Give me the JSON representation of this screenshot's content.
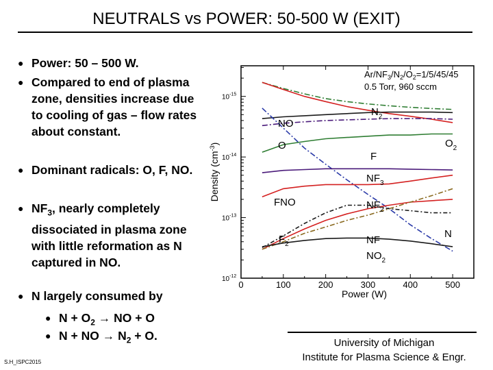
{
  "slide": {
    "title": "NEUTRALS vs POWER: 50-500 W (EXIT)",
    "credit": "S.H_ISPC2015",
    "footer_line1": "University of Michigan",
    "footer_line2": "Institute for Plasma Science & Engr."
  },
  "bullets": {
    "b1": "Power: 50 – 500 W.",
    "b2": "Compared  to end of plasma zone, densities increase due to cooling of gas – flow rates about constant.",
    "b3": "Dominant radicals: O, F, NO.",
    "b4_pre": "NF",
    "b4_sub": "3",
    "b4_post": ", nearly completely dissociated in plasma zone with little reformation as N captured in NO.",
    "b5": "N largely consumed by",
    "r1_pre": "N + O",
    "r1_sub": "2",
    "r1_arrow": "→",
    "r1_post": " NO + O",
    "r2_pre": "N + NO ",
    "r2_arrow": "→",
    "r2_mid": " N",
    "r2_sub": "2",
    "r2_post": " + O."
  },
  "chart_data": {
    "type": "line",
    "title": "Ar/NF3/N2/O2=1/5/45/45",
    "subtitle": "0.5 Torr, 960 sccm",
    "xlabel": "Power (W)",
    "ylabel": "Density (cm-3)",
    "xlim": [
      0,
      550
    ],
    "x_ticks": [
      "0",
      "100",
      "200",
      "300",
      "400",
      "500"
    ],
    "y_scale": "log",
    "y_ticks": [
      "10-12",
      "10-13",
      "10-14",
      "10-15"
    ],
    "x": [
      50,
      100,
      150,
      200,
      250,
      300,
      350,
      400,
      450,
      500
    ],
    "series": [
      {
        "name": "N2",
        "color": "#2e7d32",
        "dash": "8,3,2,3",
        "values": [
          1700000000000000.0,
          1350000000000000.0,
          1100000000000000.0,
          920000000000000.0,
          820000000000000.0,
          750000000000000.0,
          700000000000000.0,
          660000000000000.0,
          630000000000000.0,
          610000000000000.0
        ]
      },
      {
        "name": "O2",
        "color": "#d42020",
        "dash": "",
        "values": [
          1700000000000000.0,
          1300000000000000.0,
          1000000000000000.0,
          820000000000000.0,
          680000000000000.0,
          590000000000000.0,
          520000000000000.0,
          470000000000000.0,
          420000000000000.0,
          370000000000000.0
        ]
      },
      {
        "name": "NO",
        "color": "#1a1a1a",
        "dash": "",
        "values": [
          430000000000000.0,
          460000000000000.0,
          480000000000000.0,
          500000000000000.0,
          520000000000000.0,
          540000000000000.0,
          550000000000000.0,
          550000000000000.0,
          550000000000000.0,
          540000000000000.0
        ]
      },
      {
        "name": "O",
        "color": "#4a1a7a",
        "dash": "8,3,2,3",
        "values": [
          330000000000000.0,
          360000000000000.0,
          380000000000000.0,
          400000000000000.0,
          410000000000000.0,
          420000000000000.0,
          430000000000000.0,
          430000000000000.0,
          430000000000000.0,
          420000000000000.0
        ]
      },
      {
        "name": "F",
        "color": "#2e7d32",
        "dash": "",
        "values": [
          120000000000000.0,
          160000000000000.0,
          180000000000000.0,
          200000000000000.0,
          210000000000000.0,
          220000000000000.0,
          230000000000000.0,
          230000000000000.0,
          240000000000000.0,
          240000000000000.0
        ]
      },
      {
        "name": "NF3",
        "color": "#2a3aa8",
        "dash": "8,3,2,3",
        "values": [
          640000000000000.0,
          300000000000000.0,
          140000000000000.0,
          76000000000000.0,
          42000000000000.0,
          24000000000000.0,
          14000000000000.0,
          7600000000000.0,
          4500000000000.0,
          2800000000000.0
        ]
      },
      {
        "name": "FNO",
        "color": "#4a1a7a",
        "dash": "",
        "values": [
          55000000000000.0,
          60000000000000.0,
          62000000000000.0,
          64000000000000.0,
          64000000000000.0,
          64000000000000.0,
          64000000000000.0,
          63000000000000.0,
          62000000000000.0,
          61000000000000.0
        ]
      },
      {
        "name": "NF2",
        "color": "#d42020",
        "dash": "",
        "values": [
          22000000000000.0,
          30000000000000.0,
          33000000000000.0,
          35000000000000.0,
          35000000000000.0,
          35000000000000.0,
          36000000000000.0,
          40000000000000.0,
          45000000000000.0,
          50000000000000.0
        ]
      },
      {
        "name": "F2",
        "color": "#d42020",
        "dash": "",
        "values": [
          3000000000000.0,
          4500000000000.0,
          6500000000000.0,
          9000000000000.0,
          11500000000000.0,
          14000000000000.0,
          16000000000000.0,
          18000000000000.0,
          19000000000000.0,
          20000000000000.0
        ]
      },
      {
        "name": "NF",
        "color": "#1a1a1a",
        "dash": "6,3,2,3",
        "values": [
          3200000000000.0,
          5000000000000.0,
          8000000000000.0,
          12000000000000.0,
          16000000000000.0,
          16000000000000.0,
          14000000000000.0,
          13000000000000.0,
          12000000000000.0,
          12000000000000.0
        ]
      },
      {
        "name": "N",
        "color": "#8a6a20",
        "dash": "7,3,2,3",
        "values": [
          3000000000000.0,
          4000000000000.0,
          5500000000000.0,
          7000000000000.0,
          9000000000000.0,
          11000000000000.0,
          14000000000000.0,
          18000000000000.0,
          23000000000000.0,
          30000000000000.0
        ]
      },
      {
        "name": "NO2",
        "color": "#1a1a1a",
        "dash": "",
        "values": [
          3300000000000.0,
          3800000000000.0,
          4200000000000.0,
          4500000000000.0,
          4600000000000.0,
          4600000000000.0,
          4400000000000.0,
          4100000000000.0,
          3700000000000.0,
          3300000000000.0
        ]
      }
    ],
    "series_labels": [
      {
        "text": "NO",
        "sub": ""
      },
      {
        "text": "O",
        "sub": ""
      },
      {
        "text": "N",
        "sub": "2"
      },
      {
        "text": "O",
        "sub": "2"
      },
      {
        "text": "F",
        "sub": ""
      },
      {
        "text": "NF",
        "sub": "3"
      },
      {
        "text": "FNO",
        "sub": ""
      },
      {
        "text": "NF",
        "sub": "2"
      },
      {
        "text": "N",
        "sub": ""
      },
      {
        "text": "F",
        "sub": "2"
      },
      {
        "text": "NF",
        "sub": ""
      },
      {
        "text": "NO",
        "sub": "2"
      }
    ]
  }
}
